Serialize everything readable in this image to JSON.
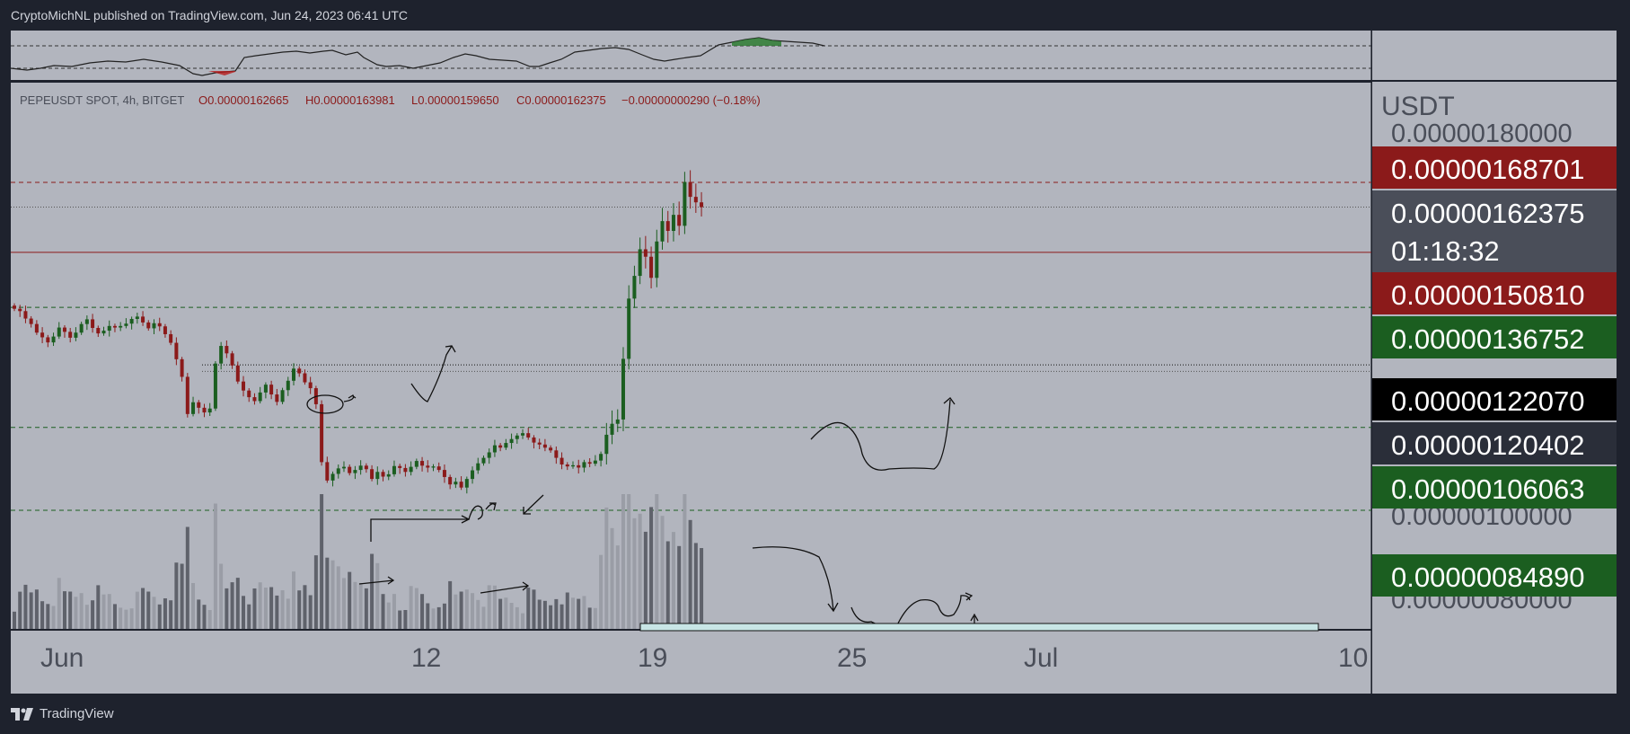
{
  "header": {
    "text": "CryptoMichNL published on TradingView.com, Jun 24, 2023 06:41 UTC"
  },
  "footer": {
    "brand": "TradingView",
    "logo_icon": "tradingview-logo-icon"
  },
  "colors": {
    "page_bg": "#1e222d",
    "plot_bg": "#b2b5be",
    "up": "#1b5e20",
    "down": "#8b1a1a",
    "label_red": "#8b1a1a",
    "label_green": "#1b5e20",
    "label_black": "#000000",
    "label_dark": "#2a2e39",
    "label_gray": "#4a4e59"
  },
  "legend": {
    "symbol": "PEPEUSDT SPOT, 4h, BITGET",
    "open": "O0.00000162665",
    "high": "H0.00000163981",
    "low": "L0.00000159650",
    "close": "C0.00000162375",
    "change": "−0.00000000290 (−0.18%)"
  },
  "axis": {
    "currency": "USDT",
    "x_ticks": [
      "Jun",
      "12",
      "19",
      "25",
      "Jul",
      "10"
    ],
    "y_partial_top": "0.00000180000",
    "y_partial_bottom": "0.00000080000",
    "y_partial_mid": "0.00000100000"
  },
  "price_labels": [
    {
      "text": "0.00000168701",
      "style": "red"
    },
    {
      "text": "0.00000162375",
      "style": "gray",
      "sub": "01:18:32"
    },
    {
      "text": "0.00000150810",
      "style": "red"
    },
    {
      "text": "0.00000136752",
      "style": "green"
    },
    {
      "text": "0.00000122070",
      "style": "black"
    },
    {
      "text": "0.00000120402",
      "style": "dark"
    },
    {
      "text": "0.00000106063",
      "style": "green"
    },
    {
      "text": "0.00000084890",
      "style": "green"
    }
  ],
  "chart_data": {
    "type": "candlestick",
    "symbol": "PEPEUSDT SPOT, 4h, BITGET",
    "x_ticks": [
      "Jun",
      "12",
      "19",
      "25",
      "Jul",
      "10"
    ],
    "ylabel": "USDT",
    "horizontal_levels": [
      {
        "value": 1.68701e-06,
        "style": "red-dashed"
      },
      {
        "value": 1.62375e-06,
        "style": "gray-dotted"
      },
      {
        "value": 1.5081e-06,
        "style": "red-solid"
      },
      {
        "value": 1.36752e-06,
        "style": "green-dashed"
      },
      {
        "value": 1.2207e-06,
        "style": "black-dotted"
      },
      {
        "value": 1.20402e-06,
        "style": "gray-dotted"
      },
      {
        "value": 1.06063e-06,
        "style": "green-dashed"
      },
      {
        "value": 8.489e-07,
        "style": "green-dashed"
      }
    ],
    "close": [
      1.364,
      1.358,
      1.339,
      1.325,
      1.303,
      1.291,
      1.278,
      1.293,
      1.316,
      1.305,
      1.29,
      1.303,
      1.325,
      1.337,
      1.315,
      1.301,
      1.308,
      1.32,
      1.316,
      1.32,
      1.326,
      1.338,
      1.344,
      1.329,
      1.314,
      1.327,
      1.319,
      1.299,
      1.277,
      1.235,
      1.19,
      1.095,
      1.125,
      1.111,
      1.099,
      1.109,
      1.224,
      1.269,
      1.25,
      1.219,
      1.178,
      1.155,
      1.138,
      1.128,
      1.15,
      1.17,
      1.145,
      1.126,
      1.156,
      1.18,
      1.211,
      1.199,
      1.176,
      1.161,
      1.12,
      0.972,
      0.925,
      0.942,
      0.956,
      0.96,
      0.944,
      0.952,
      0.963,
      0.954,
      0.929,
      0.947,
      0.935,
      0.941,
      0.962,
      0.957,
      0.947,
      0.96,
      0.975,
      0.963,
      0.958,
      0.961,
      0.952,
      0.934,
      0.915,
      0.922,
      0.907,
      0.929,
      0.951,
      0.969,
      0.983,
      0.997,
      1.015,
      1.009,
      1.021,
      1.031,
      1.04,
      1.046,
      1.035,
      1.022,
      1.017,
      1.009,
      1.002,
      0.983,
      0.966,
      0.961,
      0.964,
      0.958,
      0.972,
      0.968,
      0.976,
      0.993,
      1.042,
      1.07,
      1.081,
      1.236,
      1.39,
      1.448,
      1.516,
      1.497,
      1.443,
      1.536,
      1.588,
      1.563,
      1.604,
      1.576,
      1.688,
      1.65,
      1.636,
      1.6238
    ]
  }
}
